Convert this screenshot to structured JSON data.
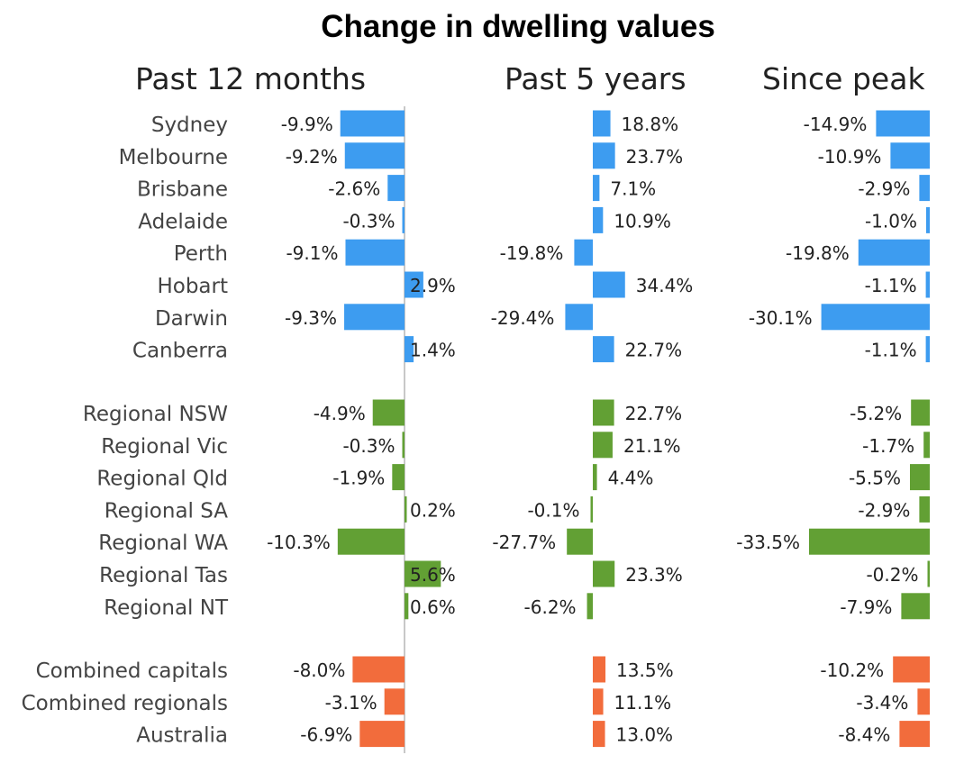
{
  "title": "Change in dwelling values",
  "colors": {
    "capital": "#3d9cf0",
    "regional": "#62a034",
    "aggregate": "#f26c3c",
    "axis": "#c8c8c8",
    "label": "#444444",
    "value": "#222222"
  },
  "chart_data": {
    "type": "bar",
    "orientation": "horizontal",
    "title": "Change in dwelling values",
    "panels": [
      {
        "key": "past12",
        "title": "Past 12 months"
      },
      {
        "key": "past5",
        "title": "Past 5 years"
      },
      {
        "key": "peak",
        "title": "Since peak"
      }
    ],
    "groups": [
      {
        "color": "capital",
        "rows": [
          {
            "label": "Sydney",
            "values": [
              -9.9,
              18.8,
              -14.9
            ],
            "text": [
              "-9.9%",
              "18.8%",
              "-14.9%"
            ]
          },
          {
            "label": "Melbourne",
            "values": [
              -9.2,
              23.7,
              -10.9
            ],
            "text": [
              "-9.2%",
              "23.7%",
              "-10.9%"
            ]
          },
          {
            "label": "Brisbane",
            "values": [
              -2.6,
              7.1,
              -2.9
            ],
            "text": [
              "-2.6%",
              "7.1%",
              "-2.9%"
            ]
          },
          {
            "label": "Adelaide",
            "values": [
              -0.3,
              10.9,
              -1.0
            ],
            "text": [
              "-0.3%",
              "10.9%",
              "-1.0%"
            ]
          },
          {
            "label": "Perth",
            "values": [
              -9.1,
              -19.8,
              -19.8
            ],
            "text": [
              "-9.1%",
              "-19.8%",
              "-19.8%"
            ]
          },
          {
            "label": "Hobart",
            "values": [
              2.9,
              34.4,
              -1.1
            ],
            "text": [
              "2.9%",
              "34.4%",
              "-1.1%"
            ]
          },
          {
            "label": "Darwin",
            "values": [
              -9.3,
              -29.4,
              -30.1
            ],
            "text": [
              "-9.3%",
              "-29.4%",
              "-30.1%"
            ]
          },
          {
            "label": "Canberra",
            "values": [
              1.4,
              22.7,
              -1.1
            ],
            "text": [
              "1.4%",
              "22.7%",
              "-1.1%"
            ]
          }
        ]
      },
      {
        "color": "regional",
        "rows": [
          {
            "label": "Regional NSW",
            "values": [
              -4.9,
              22.7,
              -5.2
            ],
            "text": [
              "-4.9%",
              "22.7%",
              "-5.2%"
            ]
          },
          {
            "label": "Regional Vic",
            "values": [
              -0.3,
              21.1,
              -1.7
            ],
            "text": [
              "-0.3%",
              "21.1%",
              "-1.7%"
            ]
          },
          {
            "label": "Regional Qld",
            "values": [
              -1.9,
              4.4,
              -5.5
            ],
            "text": [
              "-1.9%",
              "4.4%",
              "-5.5%"
            ]
          },
          {
            "label": "Regional SA",
            "values": [
              0.2,
              -0.1,
              -2.9
            ],
            "text": [
              "0.2%",
              "-0.1%",
              "-2.9%"
            ]
          },
          {
            "label": "Regional WA",
            "values": [
              -10.3,
              -27.7,
              -33.5
            ],
            "text": [
              "-10.3%",
              "-27.7%",
              "-33.5%"
            ]
          },
          {
            "label": "Regional Tas",
            "values": [
              5.6,
              23.3,
              -0.2
            ],
            "text": [
              "5.6%",
              "23.3%",
              "-0.2%"
            ]
          },
          {
            "label": "Regional NT",
            "values": [
              0.6,
              -6.2,
              -7.9
            ],
            "text": [
              "0.6%",
              "-6.2%",
              "-7.9%"
            ]
          }
        ]
      },
      {
        "color": "aggregate",
        "rows": [
          {
            "label": "Combined capitals",
            "values": [
              -8.0,
              13.5,
              -10.2
            ],
            "text": [
              "-8.0%",
              "13.5%",
              "-10.2%"
            ]
          },
          {
            "label": "Combined regionals",
            "values": [
              -3.1,
              11.1,
              -3.4
            ],
            "text": [
              "-3.1%",
              "11.1%",
              "-3.4%"
            ]
          },
          {
            "label": "Australia",
            "values": [
              -6.9,
              13.0,
              -8.4
            ],
            "text": [
              "-6.9%",
              "13.0%",
              "-8.4%"
            ]
          }
        ]
      }
    ]
  }
}
